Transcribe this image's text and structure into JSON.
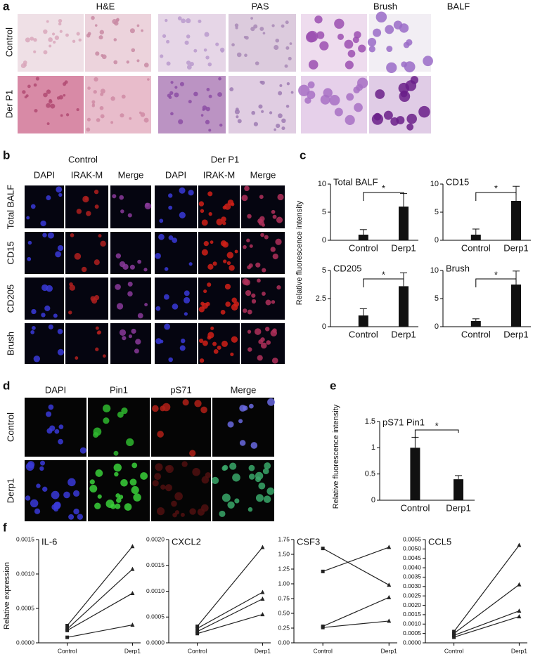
{
  "panel_a": {
    "label": "a",
    "columns": [
      "H&E",
      "PAS",
      "Brush",
      "BALF"
    ],
    "rows": [
      "Control",
      "Der P1"
    ]
  },
  "panel_b": {
    "label": "b",
    "groups": [
      "Control",
      "Der P1"
    ],
    "columns": [
      "DAPI",
      "IRAK-M",
      "Merge",
      "DAPI",
      "IRAK-M",
      "Merge"
    ],
    "rows": [
      "Total BALF",
      "CD15",
      "CD205",
      "Brush"
    ]
  },
  "panel_c": {
    "label": "c",
    "y_label": "Relative fluorescence intensity"
  },
  "panel_d": {
    "label": "d",
    "columns": [
      "DAPI",
      "Pin1",
      "pS71",
      "Merge"
    ],
    "rows": [
      "Control",
      "Derp1"
    ]
  },
  "panel_e": {
    "label": "e",
    "y_label": "Relative fluorescence intensity"
  },
  "panel_f": {
    "label": "f",
    "y_label": "Relative expression"
  },
  "chart_data": [
    {
      "type": "bar",
      "title": "Total BALF",
      "categories": [
        "Control",
        "Derp1"
      ],
      "values": [
        1,
        6
      ],
      "errors": [
        0.9,
        2.3
      ],
      "significance": "*",
      "color": "#111111",
      "ylim": [
        0,
        10
      ],
      "yticks": [
        0,
        5,
        10
      ]
    },
    {
      "type": "bar",
      "title": "CD15",
      "categories": [
        "Control",
        "Derp1"
      ],
      "values": [
        1,
        7
      ],
      "errors": [
        1,
        2.6
      ],
      "significance": "*",
      "color": "#111111",
      "ylim": [
        0,
        10
      ],
      "yticks": [
        0,
        5,
        10
      ]
    },
    {
      "type": "bar",
      "title": "CD205",
      "categories": [
        "Control",
        "Derp1"
      ],
      "values": [
        1,
        3.6
      ],
      "errors": [
        0.6,
        1.2
      ],
      "significance": "*",
      "color": "#111111",
      "ylim": [
        0,
        5
      ],
      "yticks": [
        0,
        2.5,
        5
      ]
    },
    {
      "type": "bar",
      "title": "Brush",
      "categories": [
        "Control",
        "Derp1"
      ],
      "values": [
        1,
        7.5
      ],
      "errors": [
        0.4,
        2.4
      ],
      "significance": "*",
      "color": "#111111",
      "ylim": [
        0,
        10
      ],
      "yticks": [
        0,
        5,
        10
      ]
    },
    {
      "type": "bar",
      "title": "pS71 Pin1",
      "categories": [
        "Control",
        "Derp1"
      ],
      "values": [
        1,
        0.4
      ],
      "errors": [
        0.2,
        0.07
      ],
      "significance": "*",
      "color": "#111111",
      "ylim": [
        0,
        1.5
      ],
      "yticks": [
        0,
        0.5,
        1,
        1.5
      ]
    },
    {
      "type": "line",
      "title": "IL-6",
      "categories": [
        "Control",
        "Derp1"
      ],
      "markers": [
        "square",
        "triangle"
      ],
      "color": "#222222",
      "series": [
        {
          "values": [
            0.00025,
            0.0014
          ]
        },
        {
          "values": [
            0.0002,
            0.00107
          ]
        },
        {
          "values": [
            0.00018,
            0.00072
          ]
        },
        {
          "values": [
            8e-05,
            0.00026
          ]
        }
      ],
      "ylim": [
        0,
        0.0015
      ],
      "yticks": [
        {
          "value": 0,
          "label": "0.0000"
        },
        0.0005,
        {
          "value": 0.001,
          "label": "0.0010"
        },
        0.0015
      ]
    },
    {
      "type": "line",
      "title": "CXCL2",
      "categories": [
        "Control",
        "Derp1"
      ],
      "markers": [
        "square",
        "triangle"
      ],
      "color": "#222222",
      "series": [
        {
          "values": [
            0.00032,
            0.00185
          ]
        },
        {
          "values": [
            0.00028,
            0.00098
          ]
        },
        {
          "values": [
            0.00022,
            0.00085
          ]
        },
        {
          "values": [
            0.00018,
            0.00055
          ]
        }
      ],
      "ylim": [
        0,
        0.002
      ],
      "yticks": [
        {
          "value": 0,
          "label": "0.0000"
        },
        0.0005,
        {
          "value": 0.001,
          "label": "0.0010"
        },
        0.0015,
        {
          "value": 0.002,
          "label": "0.0020"
        }
      ]
    },
    {
      "type": "line",
      "title": "CSF3",
      "categories": [
        "Control",
        "Derp1"
      ],
      "markers": [
        "square",
        "triangle"
      ],
      "color": "#222222",
      "series": [
        {
          "values": [
            1.6,
            0.98
          ]
        },
        {
          "values": [
            1.21,
            1.62
          ]
        },
        {
          "values": [
            0.28,
            0.77
          ]
        },
        {
          "values": [
            0.26,
            0.37
          ]
        }
      ],
      "ylim": [
        0,
        1.75
      ],
      "yticks": [
        {
          "value": 0,
          "label": "0.00"
        },
        0.25,
        {
          "value": 0.5,
          "label": "0.50"
        },
        0.75,
        {
          "value": 1,
          "label": "1.00"
        },
        1.25,
        {
          "value": 1.5,
          "label": "1.50"
        },
        1.75
      ]
    },
    {
      "type": "line",
      "title": "CCL5",
      "categories": [
        "Control",
        "Derp1"
      ],
      "markers": [
        "square",
        "triangle"
      ],
      "color": "#222222",
      "series": [
        {
          "values": [
            0.0006,
            0.0052
          ]
        },
        {
          "values": [
            0.0005,
            0.0031
          ]
        },
        {
          "values": [
            0.0004,
            0.0017
          ]
        },
        {
          "values": [
            0.0003,
            0.0014
          ]
        }
      ],
      "ylim": [
        0,
        0.0055
      ],
      "yticks": [
        {
          "value": 0,
          "label": "0.0000"
        },
        0.0005,
        {
          "value": 0.001,
          "label": "0.0010"
        },
        0.0015,
        {
          "value": 0.002,
          "label": "0.0020"
        },
        0.0025,
        {
          "value": 0.003,
          "label": "0.0030"
        },
        0.0035,
        {
          "value": 0.004,
          "label": "0.0040"
        },
        0.0045,
        {
          "value": 0.005,
          "label": "0.0050"
        },
        0.0055
      ]
    }
  ]
}
